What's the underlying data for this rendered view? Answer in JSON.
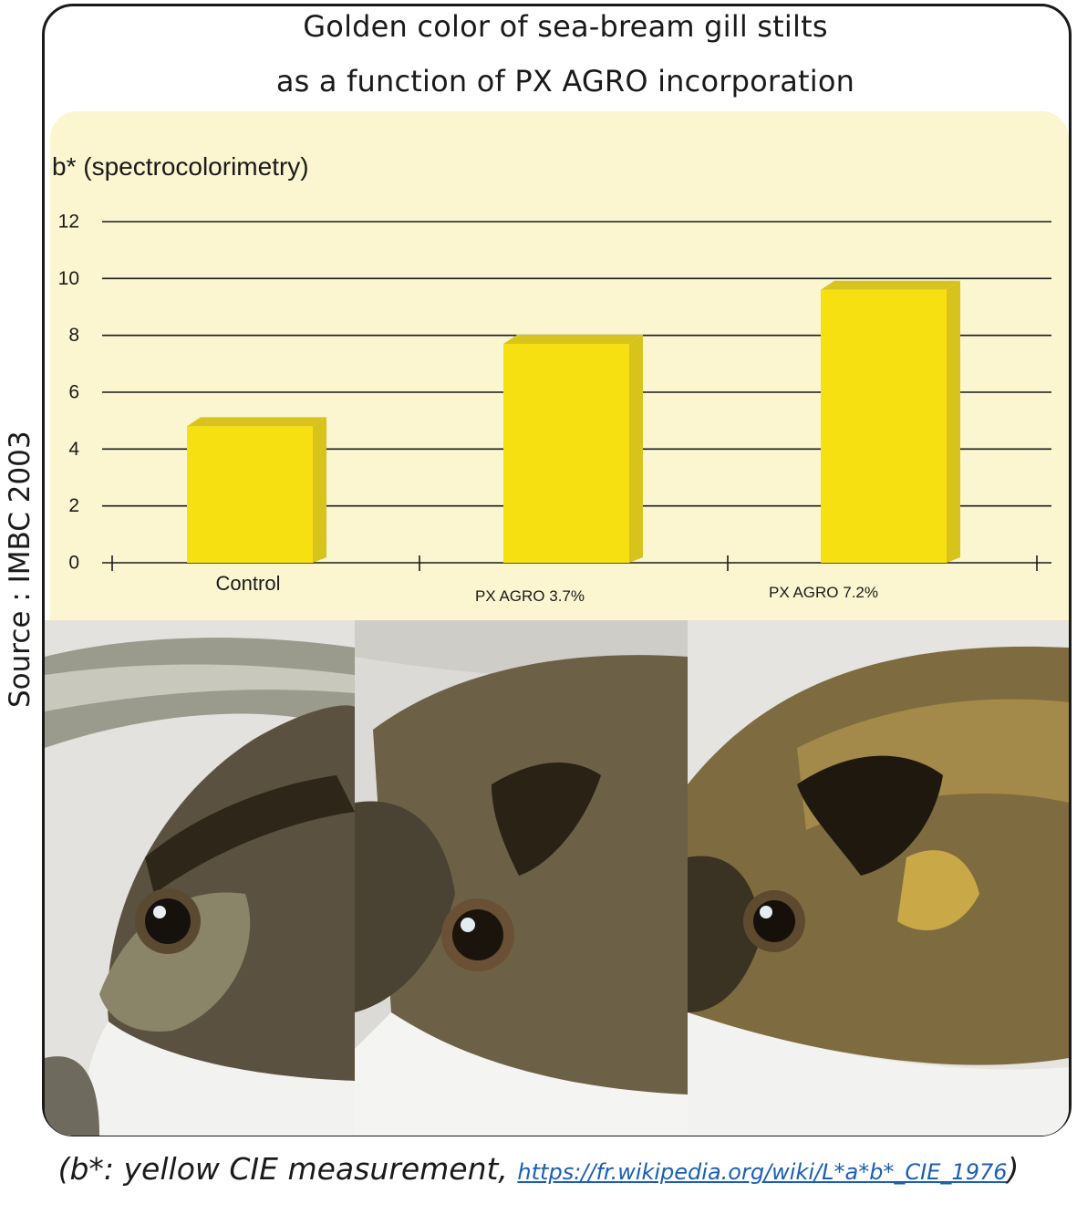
{
  "title_line1": "Golden color of sea-bream gill stilts",
  "title_line2": "as a function of PX  AGRO incorporation",
  "source": "Source : IMBC 2003",
  "footnote": {
    "prefix": "(b*: yellow CIE measurement, ",
    "link": "https://fr.wikipedia.org/wiki/L*a*b*_CIE_1976",
    "suffix": ")"
  },
  "colors": {
    "bar_front": "#f7e011",
    "bar_side": "#d8c31c",
    "bar_top": "#d9c41f",
    "panel": "#fbf6d0",
    "link": "#1a5fb4"
  },
  "photos": [
    {
      "alt": "Control sea-bream head"
    },
    {
      "alt": "PX AGRO 3.7% sea-bream head"
    },
    {
      "alt": "PX AGRO 7.2% sea-bream head"
    }
  ],
  "chart_data": {
    "type": "bar",
    "title": "Golden color of sea-bream gill stilts as a function of PX  AGRO incorporation",
    "ylabel": "b* (spectrocolorimetry)",
    "xlabel": "",
    "categories": [
      "Control",
      "PX AGRO 3.7%",
      "PX AGRO 7.2%"
    ],
    "values": [
      4.8,
      7.7,
      9.6
    ],
    "ylim": [
      0,
      12
    ],
    "yticks": [
      0,
      2,
      4,
      6,
      8,
      10,
      12
    ],
    "grid": true,
    "style": "3d"
  }
}
